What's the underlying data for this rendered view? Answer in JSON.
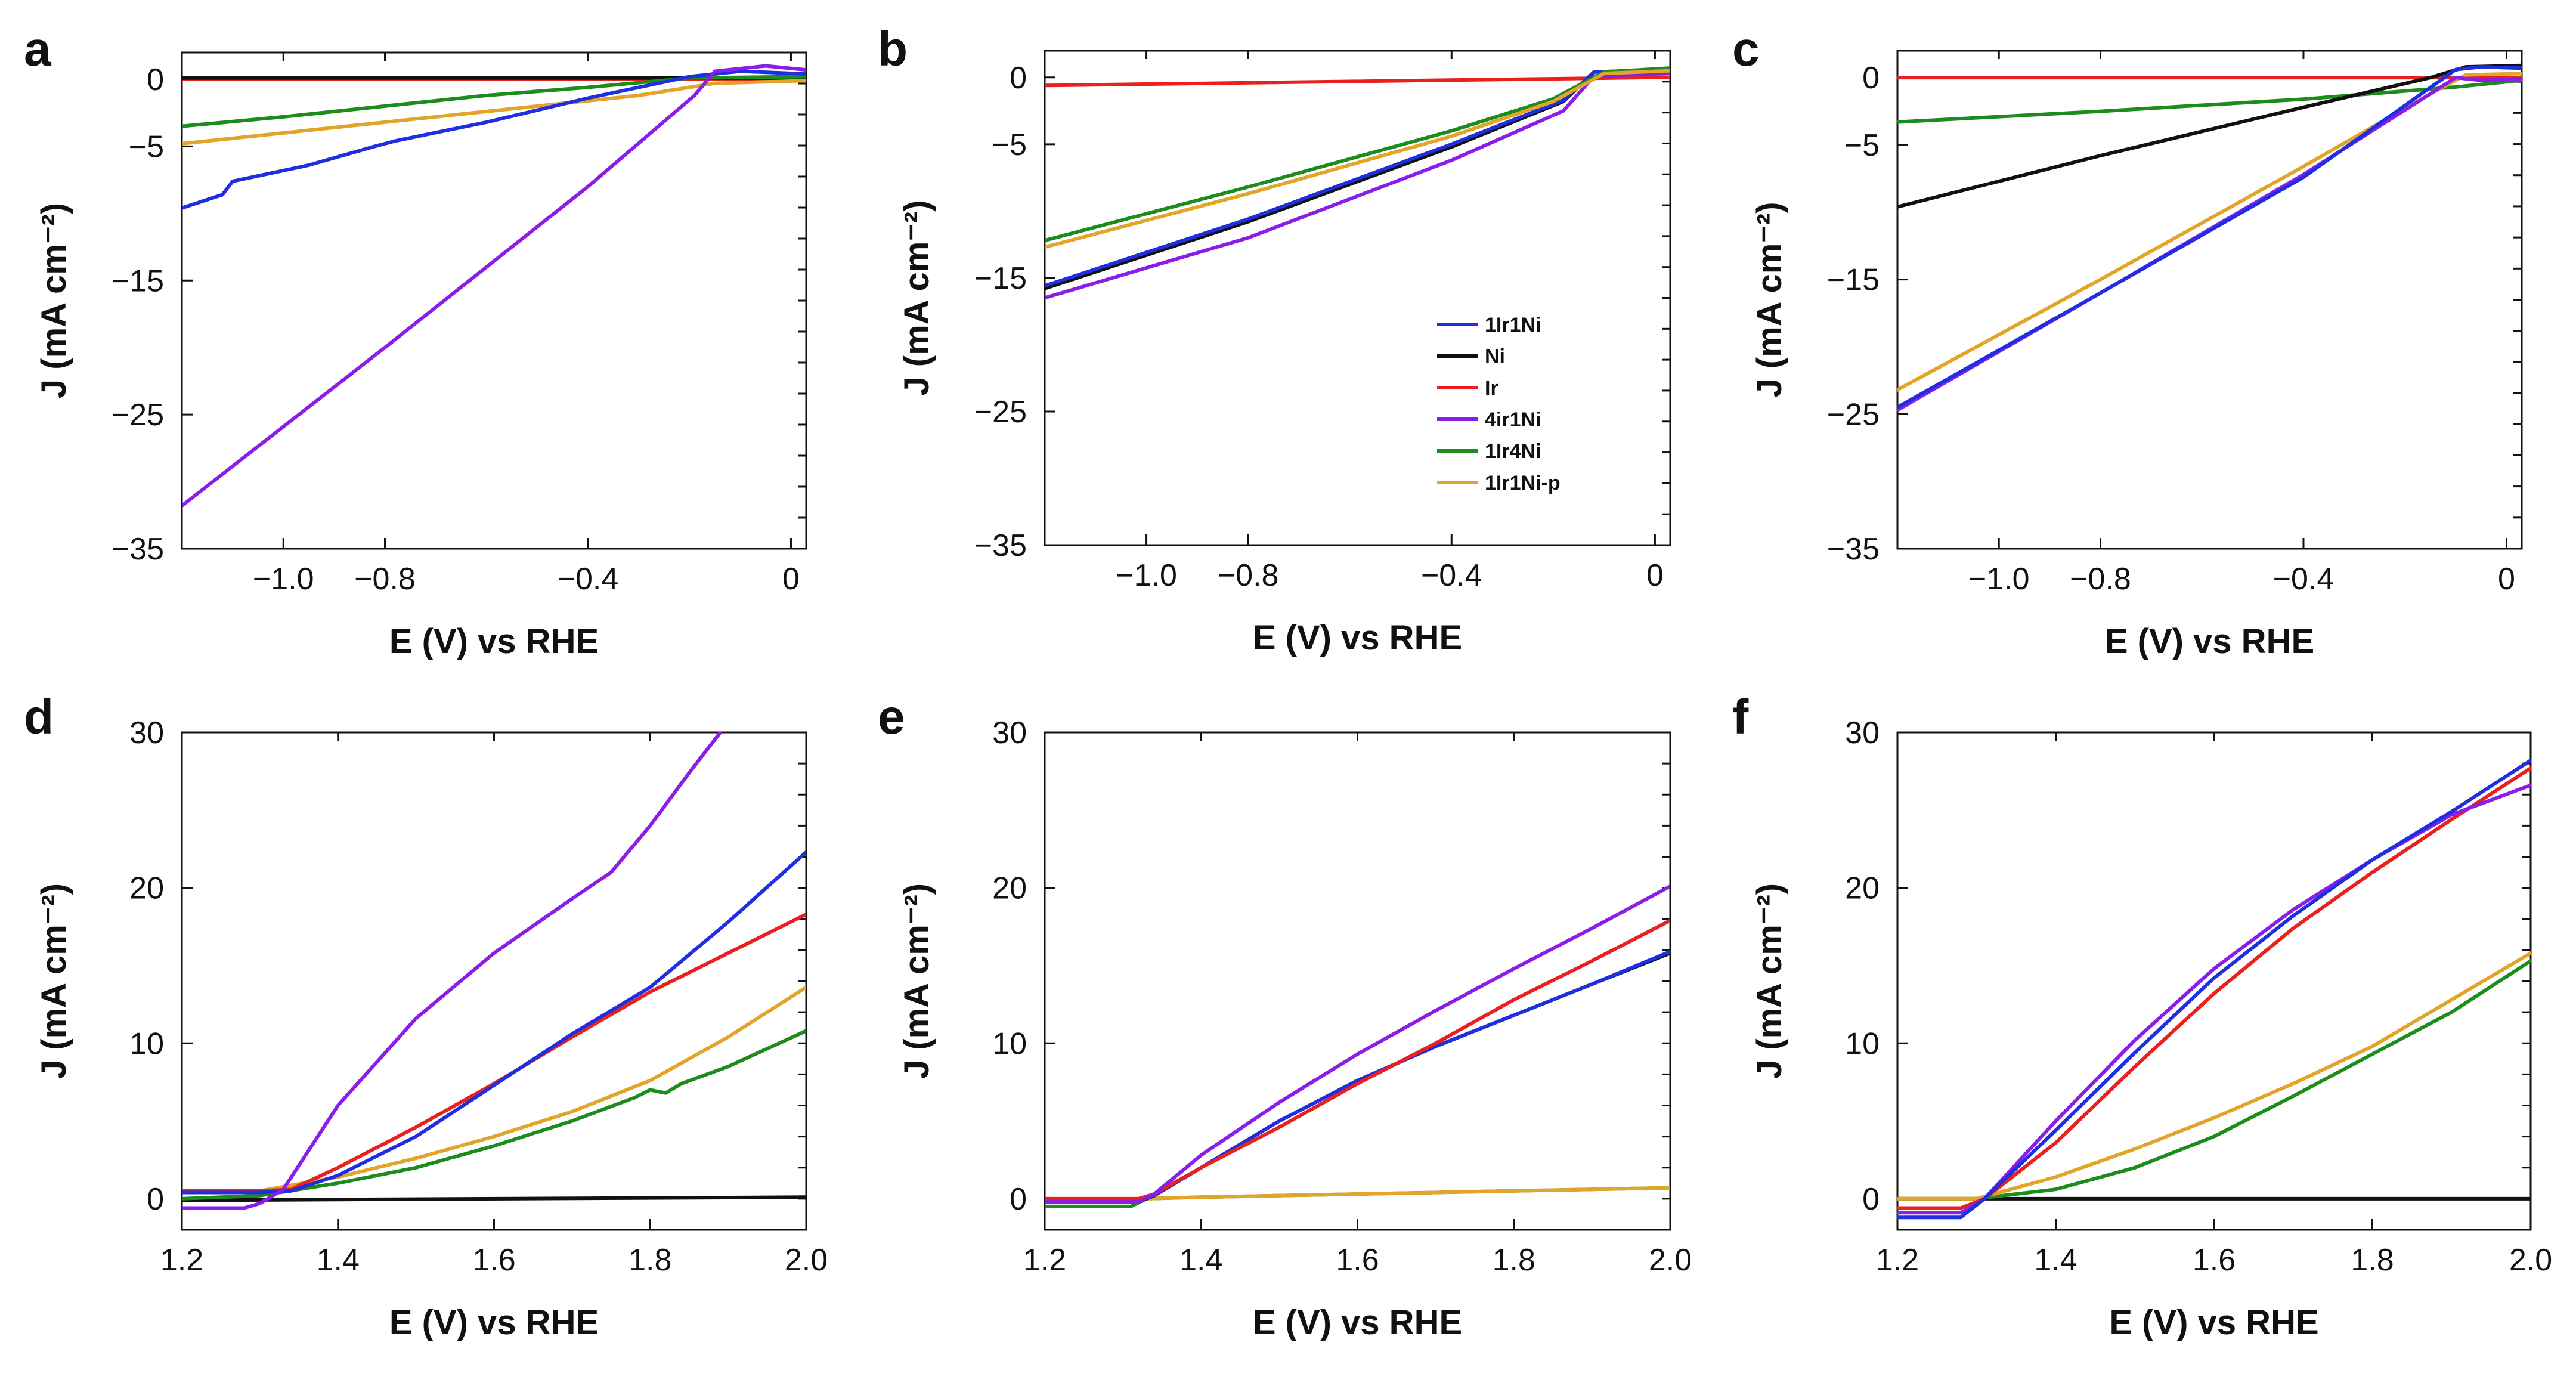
{
  "colors": {
    "1Ir1Ni": "#1f2fe0",
    "Ni": "#111111",
    "Ir": "#e8201e",
    "4ir1Ni": "#8a1ee8",
    "1Ir4Ni": "#1c8c1c",
    "1Ir1Ni-p": "#e2a52a"
  },
  "legend": {
    "entries": [
      {
        "key": "1Ir1Ni",
        "label": "1Ir1Ni"
      },
      {
        "key": "Ni",
        "label": "Ni"
      },
      {
        "key": "Ir",
        "label": "Ir"
      },
      {
        "key": "4ir1Ni",
        "label": "4ir1Ni"
      },
      {
        "key": "1Ir4Ni",
        "label": "1Ir4Ni"
      },
      {
        "key": "1Ir1Ni-p",
        "label": "1Ir1Ni-p"
      }
    ]
  },
  "chart_data": [
    {
      "panel": "a",
      "type": "line",
      "xlabel": "E (V) vs RHE",
      "ylabel": "J (mA cm⁻²)",
      "xlim": [
        -1.2,
        0.03
      ],
      "ylim": [
        -35,
        2
      ],
      "xticks": [
        -1.0,
        -0.8,
        -0.4,
        0
      ],
      "xtick_labels": [
        "−1.0",
        "−0.8",
        "−0.4",
        "0"
      ],
      "yticks": [
        -35,
        -25,
        -15,
        -5,
        0
      ],
      "ytick_labels": [
        "−35",
        "−25",
        "−15",
        "−5",
        "0"
      ],
      "series": [
        {
          "name": "Ir",
          "x": [
            -1.2,
            0.03
          ],
          "y": [
            0,
            0
          ]
        },
        {
          "name": "Ni",
          "x": [
            -1.2,
            0.03
          ],
          "y": [
            0.1,
            0.1
          ]
        },
        {
          "name": "1Ir4Ni",
          "x": [
            -1.2,
            -1.0,
            -0.8,
            -0.6,
            -0.4,
            -0.2,
            0.03
          ],
          "y": [
            -3.5,
            -2.8,
            -2.0,
            -1.2,
            -0.6,
            0.1,
            0.2
          ]
        },
        {
          "name": "1Ir1Ni-p",
          "x": [
            -1.2,
            -0.9,
            -0.6,
            -0.3,
            -0.15,
            0.03
          ],
          "y": [
            -4.8,
            -3.6,
            -2.4,
            -1.2,
            -0.3,
            -0.1
          ]
        },
        {
          "name": "1Ir1Ni",
          "x": [
            -1.2,
            -1.12,
            -1.1,
            -0.95,
            -0.82,
            -0.78,
            -0.6,
            -0.4,
            -0.2,
            -0.1,
            0.03
          ],
          "y": [
            -9.6,
            -8.6,
            -7.6,
            -6.4,
            -5.0,
            -4.6,
            -3.2,
            -1.4,
            0.2,
            0.6,
            0.4
          ]
        },
        {
          "name": "4ir1Ni",
          "x": [
            -1.2,
            -0.8,
            -0.4,
            -0.19,
            -0.15,
            -0.05,
            0.03
          ],
          "y": [
            -31.8,
            -20.0,
            -8.0,
            -1.2,
            0.6,
            1.0,
            0.7
          ]
        }
      ]
    },
    {
      "panel": "b",
      "type": "line",
      "xlabel": "E (V) vs RHE",
      "ylabel": "J (mA cm⁻²)",
      "xlim": [
        -1.2,
        0.03
      ],
      "ylim": [
        -35,
        2
      ],
      "xticks": [
        -1.0,
        -0.8,
        -0.4,
        0
      ],
      "xtick_labels": [
        "−1.0",
        "−0.8",
        "−0.4",
        "0"
      ],
      "yticks": [
        -35,
        -25,
        -15,
        -5,
        0
      ],
      "ytick_labels": [
        "−35",
        "−25",
        "−15",
        "−5",
        "0"
      ],
      "series": [
        {
          "name": "Ir",
          "x": [
            -1.2,
            -0.6,
            0.0,
            0.03
          ],
          "y": [
            -0.6,
            -0.3,
            0.0,
            0.0
          ]
        },
        {
          "name": "4ir1Ni",
          "x": [
            -1.2,
            -0.8,
            -0.4,
            -0.18,
            -0.12,
            0.03
          ],
          "y": [
            -16.5,
            -12.0,
            -6.2,
            -2.5,
            0.1,
            0.3
          ]
        },
        {
          "name": "Ni",
          "x": [
            -1.2,
            -0.8,
            -0.4,
            -0.18,
            -0.12,
            0.03
          ],
          "y": [
            -15.8,
            -10.8,
            -5.2,
            -1.8,
            0.4,
            0.6
          ]
        },
        {
          "name": "1Ir1Ni",
          "x": [
            -1.2,
            -0.8,
            -0.4,
            -0.18,
            -0.12,
            0.03
          ],
          "y": [
            -15.6,
            -10.6,
            -5.0,
            -1.7,
            0.4,
            0.6
          ]
        },
        {
          "name": "1Ir4Ni",
          "x": [
            -1.2,
            -0.8,
            -0.4,
            -0.2,
            -0.1,
            0.03
          ],
          "y": [
            -12.2,
            -8.2,
            -4.0,
            -1.6,
            0.4,
            0.7
          ]
        },
        {
          "name": "1Ir1Ni-p",
          "x": [
            -1.2,
            -0.8,
            -0.4,
            -0.2,
            -0.1,
            0.03
          ],
          "y": [
            -12.7,
            -8.7,
            -4.4,
            -1.8,
            0.3,
            0.5
          ]
        }
      ]
    },
    {
      "panel": "c",
      "type": "line",
      "xlabel": "E (V) vs RHE",
      "ylabel": "J (mA cm⁻²)",
      "xlim": [
        -1.2,
        0.03
      ],
      "ylim": [
        -35,
        2
      ],
      "xticks": [
        -1.0,
        -0.8,
        -0.4,
        0
      ],
      "xtick_labels": [
        "−1.0",
        "−0.8",
        "−0.4",
        "0"
      ],
      "yticks": [
        -35,
        -25,
        -15,
        -5,
        0
      ],
      "ytick_labels": [
        "−35",
        "−25",
        "−15",
        "−5",
        "0"
      ],
      "series": [
        {
          "name": "Ir",
          "x": [
            -1.2,
            0.03
          ],
          "y": [
            0,
            0
          ]
        },
        {
          "name": "1Ir4Ni",
          "x": [
            -1.2,
            -0.8,
            -0.4,
            -0.1,
            0.03
          ],
          "y": [
            -3.3,
            -2.5,
            -1.6,
            -0.7,
            -0.2
          ]
        },
        {
          "name": "Ni",
          "x": [
            -1.2,
            -0.8,
            -0.4,
            -0.15,
            -0.08,
            0.03
          ],
          "y": [
            -9.6,
            -5.8,
            -2.2,
            0.0,
            0.8,
            0.9
          ]
        },
        {
          "name": "1Ir1Ni-p",
          "x": [
            -1.2,
            -0.8,
            -0.4,
            -0.14,
            -0.08,
            0.03
          ],
          "y": [
            -23.2,
            -15.0,
            -6.6,
            -1.0,
            0.2,
            0.3
          ]
        },
        {
          "name": "4ir1Ni",
          "x": [
            -1.2,
            -0.8,
            -0.4,
            -0.15,
            -0.1,
            -0.05,
            0.03
          ],
          "y": [
            -24.7,
            -16.0,
            -7.2,
            -1.2,
            0.0,
            -0.2,
            -0.1
          ]
        },
        {
          "name": "1Ir1Ni",
          "x": [
            -1.2,
            -0.8,
            -0.4,
            -0.16,
            -0.1,
            -0.05,
            0.03
          ],
          "y": [
            -24.5,
            -16.0,
            -7.4,
            -1.0,
            0.6,
            0.8,
            0.7
          ]
        }
      ]
    },
    {
      "panel": "d",
      "type": "line",
      "xlabel": "E (V) vs RHE",
      "ylabel": "J (mA cm⁻²)",
      "xlim": [
        1.2,
        2.0
      ],
      "ylim": [
        -2,
        30
      ],
      "xticks": [
        1.2,
        1.4,
        1.6,
        1.8,
        2.0
      ],
      "xtick_labels": [
        "1.2",
        "1.4",
        "1.6",
        "1.8",
        "2.0"
      ],
      "yticks": [
        0,
        10,
        20,
        30
      ],
      "ytick_labels": [
        "0",
        "10",
        "20",
        "30"
      ],
      "series": [
        {
          "name": "Ni",
          "x": [
            1.2,
            2.0
          ],
          "y": [
            -0.1,
            0.1
          ]
        },
        {
          "name": "1Ir4Ni",
          "x": [
            1.2,
            1.3,
            1.4,
            1.5,
            1.6,
            1.7,
            1.78,
            1.8,
            1.82,
            1.84,
            1.9,
            2.0
          ],
          "y": [
            0.0,
            0.2,
            1.0,
            2.0,
            3.4,
            5.0,
            6.5,
            7.0,
            6.8,
            7.4,
            8.5,
            10.8
          ]
        },
        {
          "name": "1Ir1Ni-p",
          "x": [
            1.2,
            1.3,
            1.4,
            1.5,
            1.6,
            1.7,
            1.8,
            1.9,
            2.0
          ],
          "y": [
            0.4,
            0.5,
            1.4,
            2.6,
            4.0,
            5.6,
            7.6,
            10.4,
            13.6
          ]
        },
        {
          "name": "Ir",
          "x": [
            1.2,
            1.3,
            1.34,
            1.4,
            1.5,
            1.6,
            1.7,
            1.8,
            1.9,
            2.0
          ],
          "y": [
            0.5,
            0.5,
            0.6,
            2.0,
            4.6,
            7.4,
            10.4,
            13.3,
            15.8,
            18.3
          ]
        },
        {
          "name": "1Ir1Ni",
          "x": [
            1.2,
            1.3,
            1.34,
            1.4,
            1.5,
            1.6,
            1.7,
            1.8,
            1.9,
            2.0
          ],
          "y": [
            0.4,
            0.4,
            0.5,
            1.5,
            4.0,
            7.3,
            10.6,
            13.6,
            17.8,
            22.3
          ]
        },
        {
          "name": "4ir1Ni",
          "x": [
            1.2,
            1.28,
            1.3,
            1.33,
            1.4,
            1.5,
            1.6,
            1.7,
            1.75,
            1.8,
            1.85,
            1.89
          ],
          "y": [
            -0.6,
            -0.6,
            -0.3,
            0.6,
            6.0,
            11.6,
            15.8,
            19.3,
            21.0,
            24.0,
            27.4,
            30.0
          ]
        }
      ]
    },
    {
      "panel": "e",
      "type": "line",
      "xlabel": "E (V) vs RHE",
      "ylabel": "J (mA cm⁻²)",
      "xlim": [
        1.2,
        2.0
      ],
      "ylim": [
        -2,
        30
      ],
      "xticks": [
        1.2,
        1.4,
        1.6,
        1.8,
        2.0
      ],
      "xtick_labels": [
        "1.2",
        "1.4",
        "1.6",
        "1.8",
        "2.0"
      ],
      "yticks": [
        0,
        10,
        20,
        30
      ],
      "ytick_labels": [
        "0",
        "10",
        "20",
        "30"
      ],
      "series": [
        {
          "name": "1Ir4Ni",
          "x": [
            1.2,
            1.31,
            1.33,
            1.4,
            1.6,
            1.8,
            2.0
          ],
          "y": [
            -0.5,
            -0.5,
            0.0,
            0.1,
            0.3,
            0.5,
            0.7
          ]
        },
        {
          "name": "1Ir1Ni-p",
          "x": [
            1.2,
            1.33,
            1.4,
            1.6,
            1.8,
            2.0
          ],
          "y": [
            -0.1,
            0.0,
            0.1,
            0.3,
            0.5,
            0.7
          ]
        },
        {
          "name": "Ni",
          "x": [
            1.2,
            1.32,
            1.34,
            1.4,
            1.5,
            1.6,
            1.7,
            1.8,
            1.9,
            2.0
          ],
          "y": [
            -0.2,
            -0.2,
            0.2,
            2.0,
            5.0,
            7.6,
            9.8,
            11.8,
            13.8,
            15.8
          ]
        },
        {
          "name": "1Ir1Ni",
          "x": [
            1.2,
            1.32,
            1.34,
            1.4,
            1.5,
            1.6,
            1.7,
            1.8,
            1.9,
            2.0
          ],
          "y": [
            -0.1,
            -0.1,
            0.2,
            2.0,
            5.0,
            7.6,
            9.8,
            11.8,
            13.8,
            15.9
          ]
        },
        {
          "name": "Ir",
          "x": [
            1.2,
            1.32,
            1.34,
            1.4,
            1.5,
            1.6,
            1.7,
            1.8,
            1.9,
            2.0
          ],
          "y": [
            0.0,
            0.0,
            0.3,
            2.0,
            4.6,
            7.4,
            10.0,
            12.8,
            15.3,
            17.9
          ]
        },
        {
          "name": "4ir1Ni",
          "x": [
            1.2,
            1.32,
            1.34,
            1.4,
            1.5,
            1.6,
            1.7,
            1.8,
            1.9,
            2.0
          ],
          "y": [
            -0.2,
            -0.2,
            0.3,
            2.8,
            6.2,
            9.3,
            12.1,
            14.8,
            17.4,
            20.1
          ]
        }
      ]
    },
    {
      "panel": "f",
      "type": "line",
      "xlabel": "E (V) vs RHE",
      "ylabel": "J (mA cm⁻²)",
      "xlim": [
        1.2,
        2.0
      ],
      "ylim": [
        -2,
        30
      ],
      "xticks": [
        1.2,
        1.4,
        1.6,
        1.8,
        2.0
      ],
      "xtick_labels": [
        "1.2",
        "1.4",
        "1.6",
        "1.8",
        "2.0"
      ],
      "yticks": [
        0,
        10,
        20,
        30
      ],
      "ytick_labels": [
        "0",
        "10",
        "20",
        "30"
      ],
      "series": [
        {
          "name": "Ni",
          "x": [
            1.2,
            2.0
          ],
          "y": [
            0.0,
            0.0
          ]
        },
        {
          "name": "1Ir4Ni",
          "x": [
            1.2,
            1.3,
            1.4,
            1.5,
            1.6,
            1.7,
            1.8,
            1.9,
            2.0
          ],
          "y": [
            0.0,
            0.0,
            0.6,
            2.0,
            4.0,
            6.6,
            9.3,
            12.0,
            15.3
          ]
        },
        {
          "name": "1Ir1Ni-p",
          "x": [
            1.2,
            1.3,
            1.4,
            1.5,
            1.6,
            1.7,
            1.8,
            1.9,
            2.0
          ],
          "y": [
            0.0,
            0.0,
            1.4,
            3.2,
            5.2,
            7.4,
            9.8,
            12.8,
            15.8
          ]
        },
        {
          "name": "Ir",
          "x": [
            1.2,
            1.28,
            1.31,
            1.4,
            1.5,
            1.6,
            1.7,
            1.8,
            1.9,
            2.0
          ],
          "y": [
            -0.6,
            -0.6,
            0.0,
            3.6,
            8.5,
            13.2,
            17.4,
            21.0,
            24.4,
            27.7
          ]
        },
        {
          "name": "4ir1Ni",
          "x": [
            1.2,
            1.28,
            1.31,
            1.4,
            1.5,
            1.6,
            1.7,
            1.8,
            1.9,
            2.0
          ],
          "y": [
            -0.9,
            -0.9,
            0.0,
            5.0,
            10.2,
            14.8,
            18.6,
            21.8,
            24.7,
            26.6
          ]
        },
        {
          "name": "1Ir1Ni",
          "x": [
            1.2,
            1.28,
            1.31,
            1.4,
            1.5,
            1.6,
            1.7,
            1.8,
            1.9,
            2.0
          ],
          "y": [
            -1.2,
            -1.2,
            0.0,
            4.4,
            9.4,
            14.2,
            18.2,
            21.8,
            24.9,
            28.2
          ]
        }
      ]
    }
  ]
}
